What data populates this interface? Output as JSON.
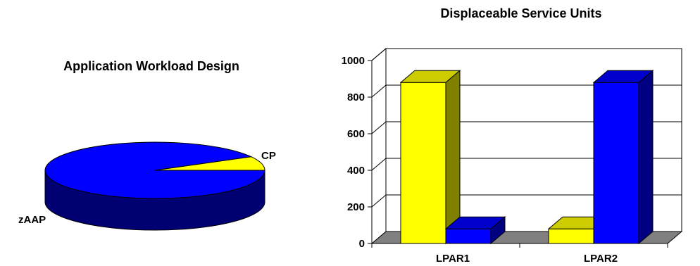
{
  "chart_data": [
    {
      "type": "pie",
      "title": "Application Workload Design",
      "labels": [
        "zAAP",
        "CP"
      ],
      "values": [
        92,
        8
      ],
      "colors": [
        "#0000FF",
        "#FFFF00"
      ],
      "three_d": true
    },
    {
      "type": "bar",
      "title": "Displaceable Service Units",
      "categories": [
        "LPAR1",
        "LPAR2"
      ],
      "series": [
        {
          "values": [
            880,
            80
          ],
          "color": "#FFFF00"
        },
        {
          "values": [
            80,
            880
          ],
          "color": "#0000FF"
        }
      ],
      "ylim": [
        0,
        1000
      ],
      "yticks": [
        0,
        200,
        400,
        600,
        800,
        1000
      ],
      "grid": true,
      "legend": "none",
      "three_d": true
    }
  ]
}
